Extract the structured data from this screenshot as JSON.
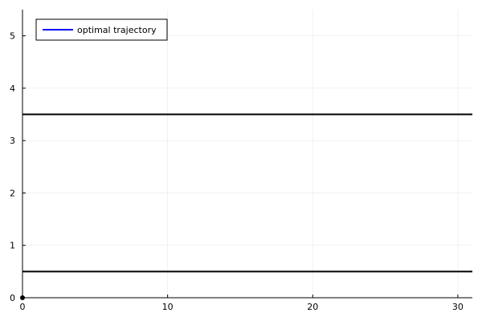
{
  "chart_data": {
    "type": "line",
    "title": "",
    "xlabel": "",
    "ylabel": "",
    "xlim": [
      0,
      31
    ],
    "ylim": [
      0,
      5.5
    ],
    "grid": true,
    "legend_position": "top-left",
    "x_ticks": [
      {
        "value": 0,
        "label": "0"
      },
      {
        "value": 10,
        "label": "10"
      },
      {
        "value": 20,
        "label": "20"
      },
      {
        "value": 30,
        "label": "30"
      }
    ],
    "y_ticks": [
      {
        "value": 0,
        "label": "0"
      },
      {
        "value": 1,
        "label": "1"
      },
      {
        "value": 2,
        "label": "2"
      },
      {
        "value": 3,
        "label": "3"
      },
      {
        "value": 4,
        "label": "4"
      },
      {
        "value": 5,
        "label": "5"
      }
    ],
    "series": [
      {
        "name": "optimal trajectory",
        "color": "#0000ff",
        "x": [
          0
        ],
        "y": [
          0
        ]
      }
    ],
    "bounds": [
      {
        "y": 3.5,
        "color": "#000000"
      },
      {
        "y": 0.5,
        "color": "#000000"
      }
    ],
    "markers": [
      {
        "x": 0,
        "y": 0,
        "color": "#000000"
      }
    ]
  }
}
